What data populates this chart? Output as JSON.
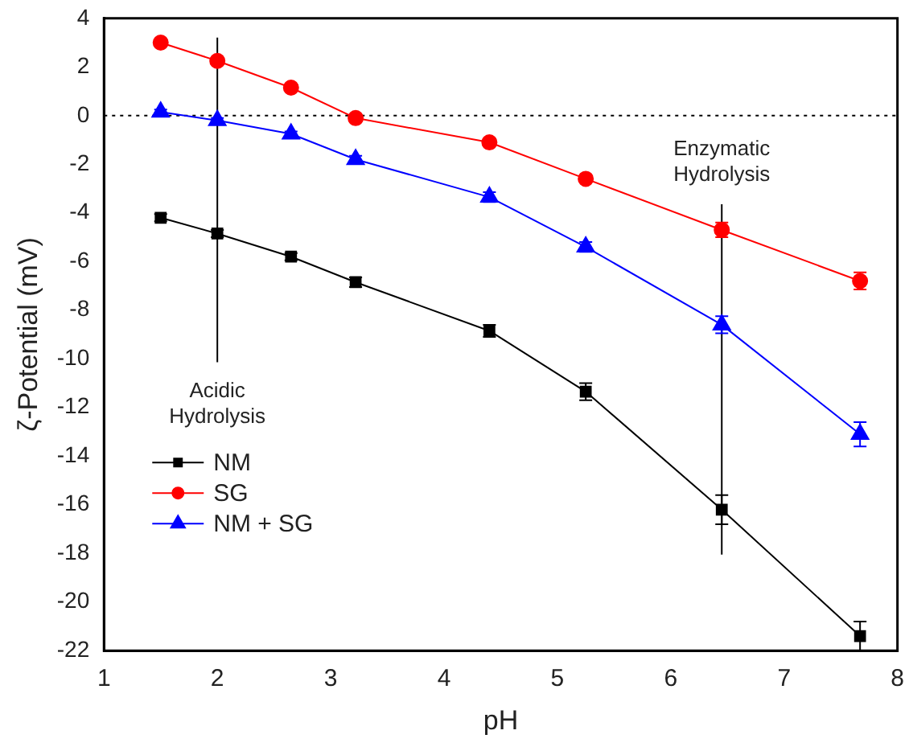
{
  "chart_data": {
    "type": "line",
    "xlabel": "pH",
    "ylabel": "ζ-Potential (mV)",
    "x": [
      1.5,
      2.0,
      2.65,
      3.22,
      4.4,
      5.25,
      6.45,
      7.67
    ],
    "xlim": [
      1,
      8
    ],
    "xticks": [
      1,
      2,
      3,
      4,
      5,
      6,
      7,
      8
    ],
    "ylim": [
      -22,
      4
    ],
    "yticks": [
      -22,
      -20,
      -18,
      -16,
      -14,
      -12,
      -10,
      -8,
      -6,
      -4,
      -2,
      0,
      2,
      4
    ],
    "series": [
      {
        "name": "NM",
        "color": "#000000",
        "marker": "square",
        "values": [
          -4.2,
          -4.85,
          -5.8,
          -6.85,
          -8.85,
          -11.35,
          -16.2,
          -21.4
        ],
        "errors": [
          0.15,
          0.15,
          0.15,
          0.2,
          0.25,
          0.35,
          0.6,
          0.6
        ]
      },
      {
        "name": "SG",
        "color": "#ff0000",
        "marker": "circle",
        "values": [
          3.0,
          2.25,
          1.15,
          -0.1,
          -1.1,
          -2.6,
          -4.7,
          -6.8
        ],
        "errors": [
          0.1,
          0.1,
          0.1,
          0.15,
          0.15,
          0.15,
          0.3,
          0.35
        ]
      },
      {
        "name": "NM + SG",
        "color": "#0000ff",
        "marker": "triangle",
        "values": [
          0.15,
          -0.2,
          -0.75,
          -1.8,
          -3.35,
          -5.4,
          -8.6,
          -13.1
        ],
        "errors": [
          0.1,
          0.1,
          0.1,
          0.15,
          0.2,
          0.2,
          0.35,
          0.5
        ]
      }
    ],
    "ref_lines": [
      {
        "axis": "y",
        "value": 0,
        "line_style": "dotted",
        "color": "#000000"
      },
      {
        "axis": "x",
        "value": 2,
        "color": "#000000",
        "label": "Acidic\nHydrolysis"
      },
      {
        "axis": "x",
        "value": 6.45,
        "color": "#000000",
        "label": "Enzymatic\nHydrolysis"
      }
    ],
    "legend": "bottom left",
    "grid": false
  }
}
